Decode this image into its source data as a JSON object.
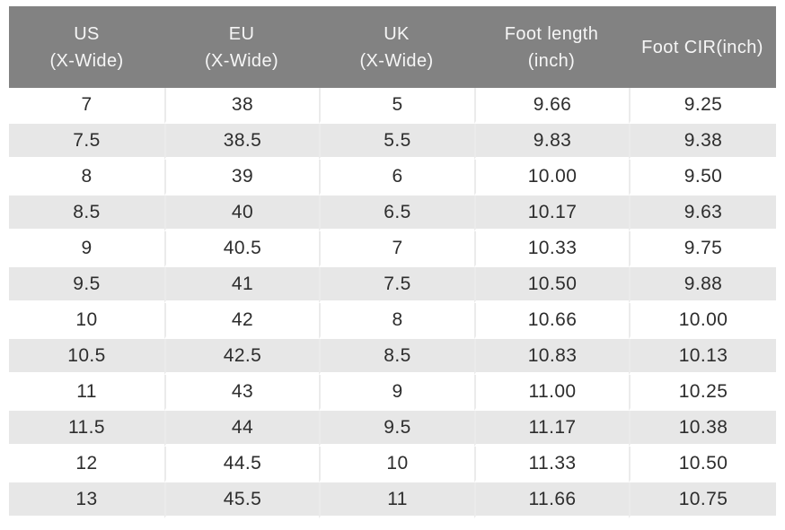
{
  "colors": {
    "header_bg": "#828282",
    "header_text": "#f6f6f6",
    "row_bg": "#ffffff",
    "row_alt_bg": "#e7e7e7",
    "divider": "#ebebeb",
    "body_text": "#2d2d2d"
  },
  "chart_data": {
    "type": "table",
    "columns": [
      "US\n(X-Wide)",
      "EU\n(X-Wide)",
      "UK\n(X-Wide)",
      "Foot length\n(inch)",
      "Foot CIR(inch)"
    ],
    "rows": [
      [
        "7",
        "38",
        "5",
        "9.66",
        "9.25"
      ],
      [
        "7.5",
        "38.5",
        "5.5",
        "9.83",
        "9.38"
      ],
      [
        "8",
        "39",
        "6",
        "10.00",
        "9.50"
      ],
      [
        "8.5",
        "40",
        "6.5",
        "10.17",
        "9.63"
      ],
      [
        "9",
        "40.5",
        "7",
        "10.33",
        "9.75"
      ],
      [
        "9.5",
        "41",
        "7.5",
        "10.50",
        "9.88"
      ],
      [
        "10",
        "42",
        "8",
        "10.66",
        "10.00"
      ],
      [
        "10.5",
        "42.5",
        "8.5",
        "10.83",
        "10.13"
      ],
      [
        "11",
        "43",
        "9",
        "11.00",
        "10.25"
      ],
      [
        "11.5",
        "44",
        "9.5",
        "11.17",
        "10.38"
      ],
      [
        "12",
        "44.5",
        "10",
        "11.33",
        "10.50"
      ],
      [
        "13",
        "45.5",
        "11",
        "11.66",
        "10.75"
      ]
    ]
  }
}
